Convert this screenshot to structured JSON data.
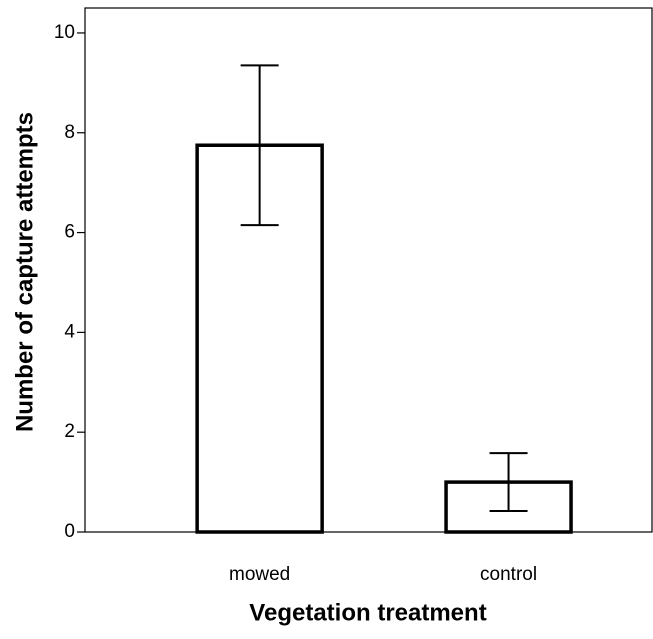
{
  "chart_data": {
    "type": "bar",
    "x_label": "Vegetation treatment",
    "y_label": "Number of capture attempts",
    "categories": [
      "mowed",
      "control"
    ],
    "values": [
      7.75,
      1.0
    ],
    "errors": [
      1.6,
      0.58
    ],
    "color": "#ffffff",
    "edge_color": "#000000",
    "ylim": [
      0,
      10.5
    ],
    "yticks": [
      0,
      2,
      4,
      6,
      8,
      10
    ],
    "grid": false
  }
}
